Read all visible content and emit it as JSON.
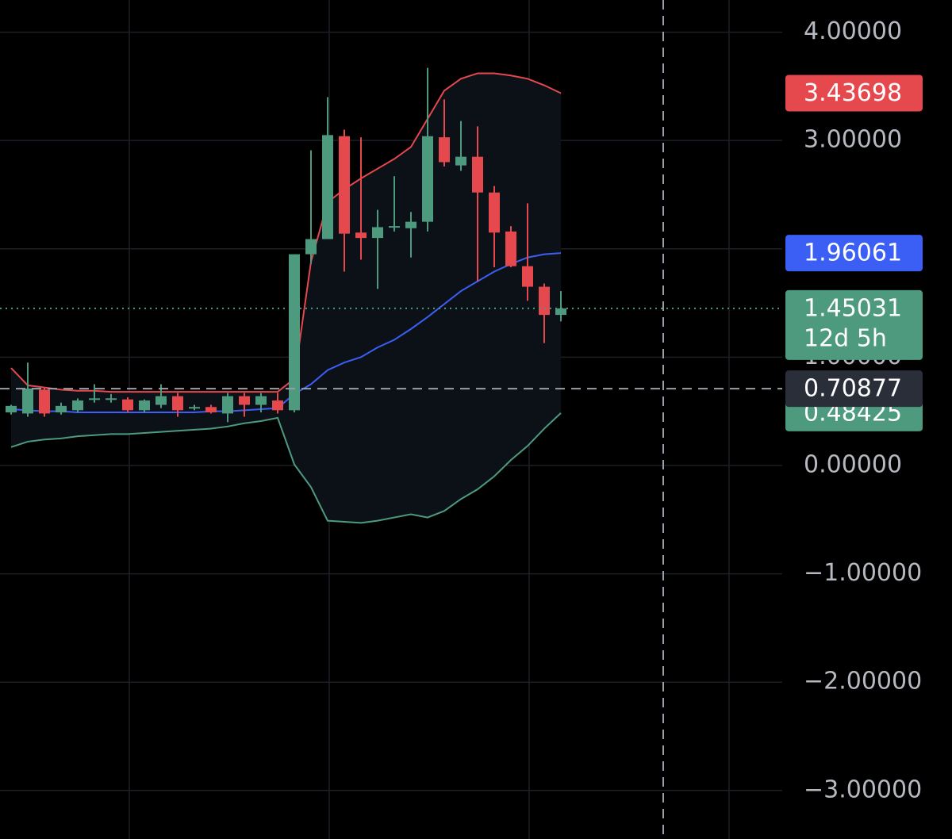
{
  "chart_data": {
    "type": "candlestick",
    "ylim": [
      -3.448,
      4.297
    ],
    "yticks": [
      {
        "value": 4,
        "label": "4.00000"
      },
      {
        "value": 3,
        "label": "3.00000"
      },
      {
        "value": 2,
        "label": "2.00000"
      },
      {
        "value": 1,
        "label": "1.00000"
      },
      {
        "value": 0,
        "label": "0.00000"
      },
      {
        "value": -1,
        "label": "−1.00000"
      },
      {
        "value": -2,
        "label": "−2.00000"
      },
      {
        "value": -3,
        "label": "−3.00000"
      }
    ],
    "grid": true,
    "up_color": "#4d9a7f",
    "down_color": "#e5484d",
    "candles": {
      "open": [
        0.49,
        0.48,
        0.7,
        0.49,
        0.51,
        0.61,
        0.61,
        0.61,
        0.51,
        0.56,
        0.64,
        0.53,
        0.54,
        0.48,
        0.64,
        0.56,
        0.6,
        0.51,
        1.95,
        2.09,
        3.04,
        2.15,
        2.1,
        2.2,
        2.19,
        2.25,
        3.03,
        2.77,
        2.85,
        2.52,
        2.16,
        1.84,
        1.65,
        1.39
      ],
      "high": [
        0.56,
        0.95,
        0.72,
        0.58,
        0.62,
        0.75,
        0.66,
        0.63,
        0.61,
        0.75,
        0.67,
        0.56,
        0.56,
        0.67,
        0.67,
        0.67,
        0.67,
        1.95,
        2.91,
        3.4,
        3.1,
        3.03,
        2.36,
        2.67,
        2.34,
        3.67,
        3.38,
        3.18,
        3.13,
        2.58,
        2.21,
        2.42,
        1.68,
        1.61
      ],
      "low": [
        0.47,
        0.45,
        0.45,
        0.47,
        0.49,
        0.58,
        0.58,
        0.49,
        0.49,
        0.53,
        0.45,
        0.51,
        0.48,
        0.4,
        0.45,
        0.49,
        0.48,
        0.49,
        1.86,
        2.09,
        1.79,
        1.9,
        1.63,
        2.16,
        1.92,
        2.16,
        2.76,
        2.72,
        1.7,
        1.83,
        1.83,
        1.52,
        1.13,
        1.33
      ],
      "close": [
        0.55,
        0.71,
        0.48,
        0.55,
        0.6,
        0.62,
        0.62,
        0.51,
        0.6,
        0.64,
        0.51,
        0.54,
        0.49,
        0.64,
        0.56,
        0.64,
        0.51,
        1.95,
        2.09,
        3.05,
        2.14,
        2.1,
        2.2,
        2.21,
        2.25,
        3.04,
        2.8,
        2.85,
        2.52,
        2.15,
        1.84,
        1.65,
        1.39,
        1.45031
      ]
    },
    "band_fill": "#0c1118",
    "series": [
      {
        "color": "#e5484d",
        "values": [
          0.9,
          0.74,
          0.72,
          0.7,
          0.69,
          0.69,
          0.68,
          0.68,
          0.68,
          0.68,
          0.68,
          0.68,
          0.68,
          0.68,
          0.68,
          0.68,
          0.68,
          0.8,
          1.88,
          2.43,
          2.55,
          2.65,
          2.74,
          2.83,
          2.94,
          3.2,
          3.46,
          3.57,
          3.62,
          3.62,
          3.6,
          3.57,
          3.51,
          3.43698
        ]
      },
      {
        "color": "#3b5ef5",
        "values": [
          0.52,
          0.51,
          0.5,
          0.5,
          0.49,
          0.49,
          0.49,
          0.49,
          0.49,
          0.49,
          0.49,
          0.49,
          0.5,
          0.5,
          0.51,
          0.52,
          0.53,
          0.66,
          0.75,
          0.88,
          0.95,
          1.0,
          1.09,
          1.16,
          1.26,
          1.37,
          1.49,
          1.61,
          1.7,
          1.79,
          1.86,
          1.92,
          1.95,
          1.96061
        ]
      },
      {
        "color": "#4d9a7f",
        "values": [
          0.17,
          0.22,
          0.24,
          0.25,
          0.27,
          0.28,
          0.29,
          0.29,
          0.3,
          0.31,
          0.32,
          0.33,
          0.34,
          0.36,
          0.39,
          0.41,
          0.44,
          0.01,
          -0.2,
          -0.51,
          -0.52,
          -0.53,
          -0.51,
          -0.48,
          -0.45,
          -0.48,
          -0.42,
          -0.31,
          -0.22,
          -0.1,
          0.05,
          0.18,
          0.34,
          0.48425
        ]
      }
    ],
    "countdown": "12d 5h",
    "crosshair": {
      "value": 0.70877,
      "color": "#2a2e39"
    }
  }
}
